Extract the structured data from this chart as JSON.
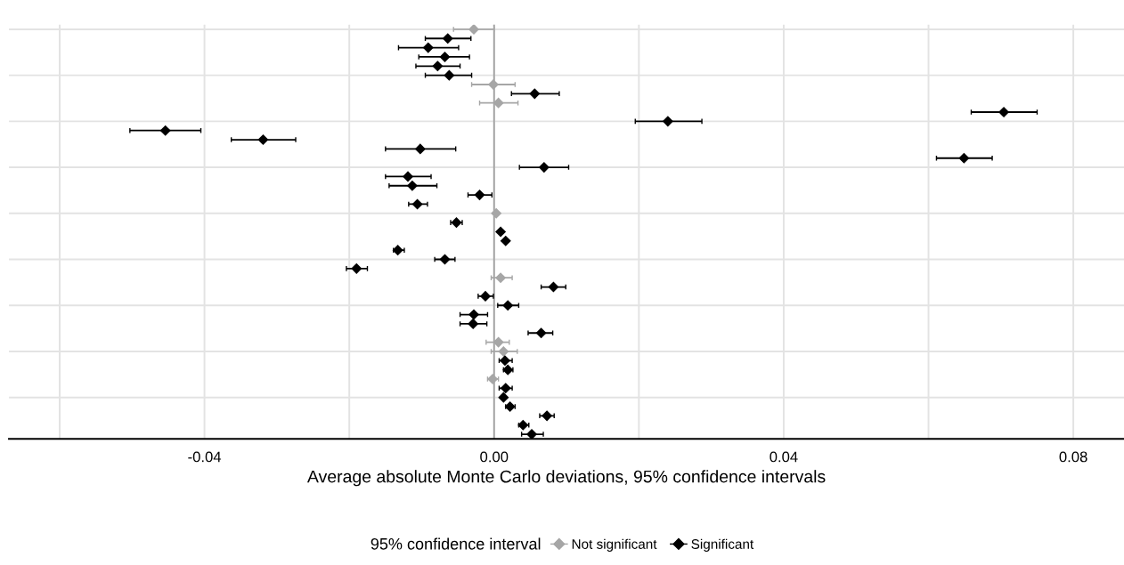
{
  "chart_data": {
    "type": "scatter",
    "orientation": "horizontal",
    "xlabel": "Average absolute Monte Carlo deviations, 95% confidence intervals",
    "legend_title": "95% confidence interval",
    "legend": "bottom",
    "grid": true,
    "marker": "diamond",
    "categories": [
      null,
      null,
      null,
      null,
      null,
      null,
      null,
      null,
      null,
      null,
      null,
      null,
      null,
      null,
      null,
      null,
      null,
      null,
      null,
      null,
      null,
      null,
      null,
      null,
      null,
      null,
      null,
      null,
      null,
      null,
      null,
      null,
      null,
      null,
      null,
      null,
      null,
      null,
      null,
      null,
      null,
      null,
      null,
      null,
      null
    ],
    "xlim": [
      -0.067,
      0.087
    ],
    "xticks": [
      {
        "value": -0.06,
        "label": null
      },
      {
        "value": -0.04,
        "label": "-0.04"
      },
      {
        "value": -0.02,
        "label": null
      },
      {
        "value": 0,
        "label": "0.00"
      },
      {
        "value": 0.02,
        "label": null
      },
      {
        "value": 0.04,
        "label": "0.04"
      },
      {
        "value": 0.06,
        "label": null
      },
      {
        "value": 0.08,
        "label": "0.08"
      }
    ],
    "ref_lines": [
      {
        "axis": "x",
        "value": 0,
        "color": "#a0a0a0"
      }
    ],
    "series": [
      {
        "name": "Not significant",
        "color": "#a6a6a6",
        "values": [
          -0.0028,
          null,
          null,
          null,
          null,
          null,
          -0.0001,
          null,
          0.0006,
          null,
          null,
          null,
          null,
          null,
          null,
          null,
          null,
          null,
          null,
          null,
          0.0003,
          null,
          null,
          null,
          null,
          null,
          null,
          0.0009,
          null,
          null,
          null,
          null,
          null,
          null,
          0.0006,
          0.0013,
          null,
          null,
          -0.0002,
          null,
          null,
          null,
          null,
          null,
          null
        ],
        "errors": [
          [
            -0.0056,
            0.0
          ],
          null,
          null,
          null,
          null,
          null,
          [
            -0.0031,
            0.0029
          ],
          null,
          [
            -0.002,
            0.0033
          ],
          null,
          null,
          null,
          null,
          null,
          null,
          null,
          null,
          null,
          null,
          null,
          null,
          null,
          null,
          null,
          null,
          null,
          null,
          [
            -0.0004,
            0.0025
          ],
          null,
          null,
          null,
          null,
          null,
          null,
          [
            -0.0011,
            0.0021
          ],
          [
            -0.0004,
            0.0032
          ],
          null,
          null,
          [
            -0.0009,
            0.0006
          ],
          null,
          null,
          null,
          null,
          null,
          null
        ]
      },
      {
        "name": "Significant",
        "color": "#000000",
        "values": [
          null,
          -0.0064,
          -0.0091,
          -0.0068,
          -0.0078,
          -0.0062,
          null,
          0.0056,
          null,
          0.0704,
          0.024,
          -0.0454,
          -0.0319,
          -0.0102,
          0.0649,
          0.0069,
          -0.0119,
          -0.0113,
          -0.002,
          -0.0106,
          null,
          -0.0052,
          0.0009,
          0.0016,
          -0.0133,
          -0.0068,
          -0.019,
          null,
          0.0082,
          -0.0012,
          0.0019,
          -0.0028,
          -0.0029,
          0.0065,
          null,
          null,
          0.0015,
          0.0019,
          null,
          0.0016,
          0.0013,
          0.0022,
          0.0073,
          0.004,
          0.0052
        ],
        "errors": [
          null,
          [
            -0.0095,
            -0.0032
          ],
          [
            -0.0132,
            -0.0049
          ],
          [
            -0.0104,
            -0.0034
          ],
          [
            -0.0108,
            -0.0047
          ],
          [
            -0.0095,
            -0.0031
          ],
          null,
          [
            0.0024,
            0.009
          ],
          null,
          [
            0.0659,
            0.075
          ],
          [
            0.0195,
            0.0287
          ],
          [
            -0.0503,
            -0.0405
          ],
          [
            -0.0363,
            -0.0274
          ],
          [
            -0.015,
            -0.0053
          ],
          [
            0.0611,
            0.0688
          ],
          [
            0.0035,
            0.0103
          ],
          [
            -0.015,
            -0.0087
          ],
          [
            -0.0145,
            -0.0079
          ],
          [
            -0.0036,
            -0.0003
          ],
          [
            -0.0118,
            -0.0092
          ],
          null,
          [
            -0.006,
            -0.0044
          ],
          null,
          null,
          [
            -0.0139,
            -0.0124
          ],
          [
            -0.0082,
            -0.0054
          ],
          [
            -0.0204,
            -0.0175
          ],
          null,
          [
            0.0065,
            0.0099
          ],
          [
            -0.0022,
            -0.0001
          ],
          [
            0.0005,
            0.0034
          ],
          [
            -0.0047,
            -0.0009
          ],
          [
            -0.0047,
            -0.001
          ],
          [
            0.0047,
            0.0081
          ],
          null,
          null,
          [
            0.0007,
            0.0025
          ],
          [
            0.0013,
            0.0026
          ],
          null,
          [
            0.0007,
            0.0025
          ],
          null,
          [
            0.0016,
            0.0029
          ],
          [
            0.0063,
            0.0083
          ],
          [
            0.0034,
            0.0048
          ],
          [
            0.0038,
            0.0068
          ]
        ]
      }
    ]
  }
}
